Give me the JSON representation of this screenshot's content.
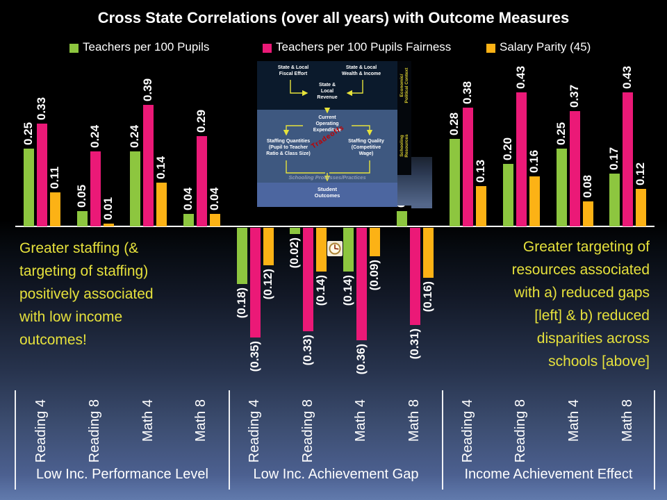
{
  "slide": {
    "title": "Cross State Correlations (over all years) with Outcome Measures",
    "background_top_color": "#000000",
    "background_bottom_color": "#617aac"
  },
  "legend": [
    {
      "name": "Teachers per 100 Pupils",
      "color": "#8dc63f"
    },
    {
      "name": "Teachers per 100 Pupils Fairness",
      "color": "#eb1977"
    },
    {
      "name": "Salary Parity (45)",
      "color": "#fcb215"
    }
  ],
  "chart_data": {
    "type": "bar",
    "title": "Cross State Correlations (over all years) with Outcome Measures",
    "ylim": [
      -0.4,
      0.45
    ],
    "gridlines": false,
    "value_label_style": "rotated 90deg, negatives shown in parentheses",
    "legend_position": "top",
    "groups": [
      {
        "label": "Low Inc. Performance Level",
        "categories": [
          "Reading 4",
          "Reading 8",
          "Math 4",
          "Math 8"
        ]
      },
      {
        "label": "Low Inc. Achievement Gap",
        "categories": [
          "Reading 4",
          "Reading 8",
          "Math 4",
          "Math 8"
        ]
      },
      {
        "label": "Income Achievement Effect",
        "categories": [
          "Reading 4",
          "Reading 8",
          "Math 4",
          "Math 8"
        ]
      }
    ],
    "series": [
      {
        "name": "Teachers per 100 Pupils",
        "color": "#8dc63f",
        "values": [
          [
            0.25,
            0.05,
            0.24,
            0.04
          ],
          [
            -0.18,
            -0.02,
            -0.14,
            0.05
          ],
          [
            0.28,
            0.2,
            0.25,
            0.17
          ]
        ]
      },
      {
        "name": "Teachers per 100 Pupils Fairness",
        "color": "#eb1977",
        "values": [
          [
            0.33,
            0.24,
            0.39,
            0.29
          ],
          [
            -0.35,
            -0.33,
            -0.36,
            -0.31
          ],
          [
            0.38,
            0.43,
            0.37,
            0.43
          ]
        ]
      },
      {
        "name": "Salary Parity (45)",
        "color": "#fcb215",
        "values": [
          [
            0.11,
            0.01,
            0.14,
            0.04
          ],
          [
            -0.12,
            -0.14,
            -0.09,
            -0.16
          ],
          [
            0.13,
            0.16,
            0.08,
            0.12
          ]
        ]
      }
    ]
  },
  "annotations": {
    "color": "#e6e13c",
    "left": "Greater staffing (&\ntargeting of staffing)\npositively associated\nwith low income\noutcomes!",
    "right": "Greater targeting of\nresources associated\nwith a) reduced gaps\n[left] & b) reduced\ndisparities across\nschools [above]"
  },
  "inset_diagram": {
    "side_economic": "Economic/\nPolitical Context",
    "side_schooling": "Schooling\nResources",
    "fiscal_effort": "State & Local\nFiscal Effort",
    "wealth_income": "State & Local\nWealth & Income",
    "revenue": "State &\nLocal\nRevenue",
    "operating_expenditure": "Current\nOperating\nExpenditure",
    "staffing_quantities": "Staffing Quantities\n(Pupil to Teacher\nRatio & Class Size)",
    "staffing_quality": "Staffing Quality\n(Competitive\nWage)",
    "tradeoffs": "Tradeoffs",
    "processes": "Schooling Processes/Practices",
    "outcomes": "Student\nOutcomes"
  },
  "icons": {
    "clock": "clock-icon"
  }
}
